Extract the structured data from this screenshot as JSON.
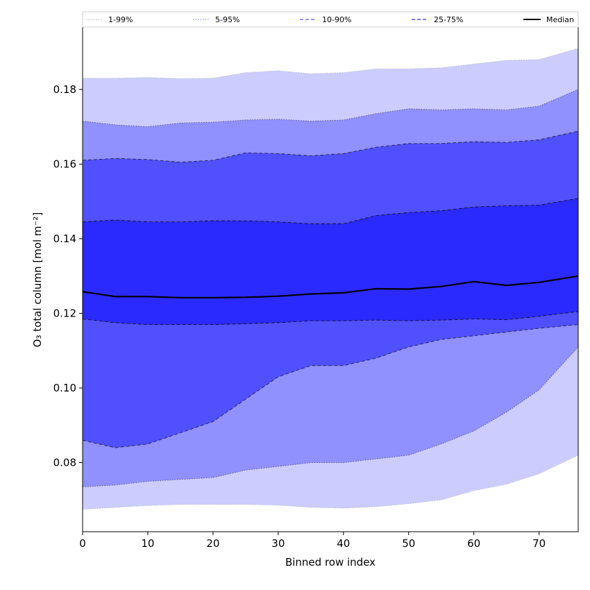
{
  "chart_data": {
    "type": "area",
    "xlabel": "Binned row index",
    "ylabel": "O₃ total column [mol m⁻²]",
    "xlim": [
      0,
      76
    ],
    "ylim": [
      0.0615,
      0.1967
    ],
    "xticks": [
      0,
      10,
      20,
      30,
      40,
      50,
      60,
      70
    ],
    "yticks": [
      0.08,
      0.1,
      0.12,
      0.14,
      0.16,
      0.18
    ],
    "ytick_labels": [
      "0.08",
      "0.10",
      "0.12",
      "0.14",
      "0.16",
      "0.18"
    ],
    "legend_position": "top",
    "x": [
      0,
      5,
      10,
      15,
      20,
      25,
      30,
      35,
      40,
      45,
      50,
      55,
      60,
      65,
      70,
      76
    ],
    "bands": [
      {
        "name": "1-99%",
        "color": "#ccccff",
        "line_style": "dotted",
        "line_color": "#bbbbbb",
        "lower": [
          0.0675,
          0.068,
          0.0685,
          0.0688,
          0.0688,
          0.0688,
          0.0686,
          0.068,
          0.0678,
          0.0682,
          0.069,
          0.07,
          0.0725,
          0.0742,
          0.077,
          0.082
        ],
        "upper": [
          0.183,
          0.183,
          0.1832,
          0.1829,
          0.183,
          0.1845,
          0.185,
          0.1842,
          0.1845,
          0.1855,
          0.1855,
          0.1858,
          0.1868,
          0.1878,
          0.188,
          0.191
        ]
      },
      {
        "name": "5-95%",
        "color": "#9090ff",
        "line_style": "dotted",
        "line_color": "#555566",
        "lower": [
          0.0735,
          0.074,
          0.075,
          0.0755,
          0.076,
          0.078,
          0.079,
          0.08,
          0.08,
          0.081,
          0.082,
          0.085,
          0.0885,
          0.0935,
          0.0995,
          0.111
        ],
        "upper": [
          0.1715,
          0.1705,
          0.17,
          0.171,
          0.1712,
          0.1718,
          0.172,
          0.1715,
          0.1718,
          0.1735,
          0.1748,
          0.1745,
          0.1748,
          0.1745,
          0.1755,
          0.18
        ]
      },
      {
        "name": "10-90%",
        "color": "#5050ff",
        "line_style": "dashed",
        "line_color": "#222244",
        "lower": [
          0.086,
          0.084,
          0.085,
          0.088,
          0.091,
          0.097,
          0.103,
          0.106,
          0.106,
          0.108,
          0.111,
          0.113,
          0.114,
          0.115,
          0.116,
          0.117
        ],
        "upper": [
          0.161,
          0.1615,
          0.1612,
          0.1605,
          0.161,
          0.163,
          0.1628,
          0.1622,
          0.1628,
          0.1645,
          0.1655,
          0.1655,
          0.166,
          0.1658,
          0.1665,
          0.1688
        ]
      },
      {
        "name": "25-75%",
        "color": "#2a2aff",
        "line_style": "dashed",
        "line_color": "#111122",
        "lower": [
          0.1185,
          0.1175,
          0.117,
          0.117,
          0.117,
          0.1172,
          0.1175,
          0.118,
          0.118,
          0.1182,
          0.118,
          0.1182,
          0.1185,
          0.1183,
          0.1192,
          0.1205
        ],
        "upper": [
          0.1445,
          0.145,
          0.1445,
          0.1445,
          0.1448,
          0.1448,
          0.1445,
          0.144,
          0.144,
          0.1462,
          0.147,
          0.1475,
          0.1485,
          0.1488,
          0.149,
          0.1508
        ]
      }
    ],
    "median": {
      "name": "Median",
      "color": "#000000",
      "values": [
        0.1258,
        0.1245,
        0.1245,
        0.1242,
        0.1242,
        0.1243,
        0.1246,
        0.1252,
        0.1255,
        0.1266,
        0.1265,
        0.1272,
        0.1285,
        0.1275,
        0.1283,
        0.13
      ]
    }
  }
}
